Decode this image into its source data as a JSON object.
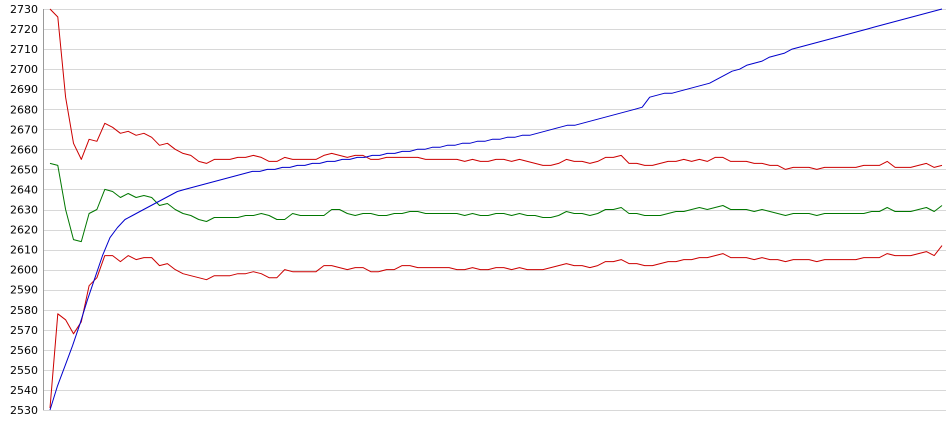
{
  "chart_data": {
    "type": "line",
    "title": "",
    "xlabel": "",
    "ylabel": "",
    "ylim": [
      2530,
      2730
    ],
    "yticks": [
      2530,
      2540,
      2550,
      2560,
      2570,
      2580,
      2590,
      2600,
      2610,
      2620,
      2630,
      2640,
      2650,
      2660,
      2670,
      2680,
      2690,
      2700,
      2710,
      2720,
      2730
    ],
    "grid": true,
    "legend": "none",
    "colors": [
      "#cc0000",
      "#007700",
      "#cc0000",
      "#0000cc"
    ],
    "series": [
      {
        "values": [
          2730,
          2726,
          2686,
          2663,
          2655,
          2665,
          2664,
          2673,
          2671,
          2668,
          2669,
          2667,
          2668,
          2666,
          2662,
          2663,
          2660,
          2658,
          2657,
          2654,
          2653,
          2655,
          2655,
          2655,
          2656,
          2656,
          2657,
          2656,
          2654,
          2654,
          2656,
          2655,
          2655,
          2655,
          2655,
          2657,
          2658,
          2657,
          2656,
          2657,
          2657,
          2655,
          2655,
          2656,
          2656,
          2656,
          2656,
          2656,
          2655,
          2655,
          2655,
          2655,
          2655,
          2654,
          2655,
          2654,
          2654,
          2655,
          2655,
          2654,
          2655,
          2654,
          2653,
          2652,
          2652,
          2653,
          2655,
          2654,
          2654,
          2653,
          2654,
          2656,
          2656,
          2657,
          2653,
          2653,
          2652,
          2652,
          2653,
          2654,
          2654,
          2655,
          2654,
          2655,
          2654,
          2656,
          2656,
          2654,
          2654,
          2654,
          2653,
          2653,
          2652,
          2652,
          2650,
          2651,
          2651,
          2651,
          2650,
          2651,
          2651,
          2651,
          2651,
          2651,
          2652,
          2652,
          2652,
          2654,
          2651,
          2651,
          2651,
          2652,
          2653,
          2651,
          2652
        ]
      },
      {
        "values": [
          2653,
          2652,
          2630,
          2615,
          2614,
          2628,
          2630,
          2640,
          2639,
          2636,
          2638,
          2636,
          2637,
          2636,
          2632,
          2633,
          2630,
          2628,
          2627,
          2625,
          2624,
          2626,
          2626,
          2626,
          2626,
          2627,
          2627,
          2628,
          2627,
          2625,
          2625,
          2628,
          2627,
          2627,
          2627,
          2627,
          2630,
          2630,
          2628,
          2627,
          2628,
          2628,
          2627,
          2627,
          2628,
          2628,
          2629,
          2629,
          2628,
          2628,
          2628,
          2628,
          2628,
          2627,
          2628,
          2627,
          2627,
          2628,
          2628,
          2627,
          2628,
          2627,
          2627,
          2626,
          2626,
          2627,
          2629,
          2628,
          2628,
          2627,
          2628,
          2630,
          2630,
          2631,
          2628,
          2628,
          2627,
          2627,
          2627,
          2628,
          2629,
          2629,
          2630,
          2631,
          2630,
          2631,
          2632,
          2630,
          2630,
          2630,
          2629,
          2630,
          2629,
          2628,
          2627,
          2628,
          2628,
          2628,
          2627,
          2628,
          2628,
          2628,
          2628,
          2628,
          2628,
          2629,
          2629,
          2631,
          2629,
          2629,
          2629,
          2630,
          2631,
          2629,
          2632
        ]
      },
      {
        "values": [
          2531,
          2578,
          2575,
          2568,
          2574,
          2592,
          2596,
          2607,
          2607,
          2604,
          2607,
          2605,
          2606,
          2606,
          2602,
          2603,
          2600,
          2598,
          2597,
          2596,
          2595,
          2597,
          2597,
          2597,
          2598,
          2598,
          2599,
          2598,
          2596,
          2596,
          2600,
          2599,
          2599,
          2599,
          2599,
          2602,
          2602,
          2601,
          2600,
          2601,
          2601,
          2599,
          2599,
          2600,
          2600,
          2602,
          2602,
          2601,
          2601,
          2601,
          2601,
          2601,
          2600,
          2600,
          2601,
          2600,
          2600,
          2601,
          2601,
          2600,
          2601,
          2600,
          2600,
          2600,
          2601,
          2602,
          2603,
          2602,
          2602,
          2601,
          2602,
          2604,
          2604,
          2605,
          2603,
          2603,
          2602,
          2602,
          2603,
          2604,
          2604,
          2605,
          2605,
          2606,
          2606,
          2607,
          2608,
          2606,
          2606,
          2606,
          2605,
          2606,
          2605,
          2605,
          2604,
          2605,
          2605,
          2605,
          2604,
          2605,
          2605,
          2605,
          2605,
          2605,
          2606,
          2606,
          2606,
          2608,
          2607,
          2607,
          2607,
          2608,
          2609,
          2607,
          2612
        ]
      },
      {
        "values": [
          2530,
          2542,
          2552,
          2562,
          2573,
          2585,
          2596,
          2607,
          2616,
          2621,
          2625,
          2627,
          2629,
          2631,
          2633,
          2635,
          2637,
          2639,
          2640,
          2641,
          2642,
          2643,
          2644,
          2645,
          2646,
          2647,
          2648,
          2649,
          2649,
          2650,
          2650,
          2651,
          2651,
          2652,
          2652,
          2653,
          2653,
          2654,
          2654,
          2655,
          2655,
          2656,
          2656,
          2657,
          2657,
          2658,
          2658,
          2659,
          2659,
          2660,
          2660,
          2661,
          2661,
          2662,
          2662,
          2663,
          2663,
          2664,
          2664,
          2665,
          2665,
          2666,
          2666,
          2667,
          2667,
          2668,
          2669,
          2670,
          2671,
          2672,
          2672,
          2673,
          2674,
          2675,
          2676,
          2677,
          2678,
          2679,
          2680,
          2681,
          2686,
          2687,
          2688,
          2688,
          2689,
          2690,
          2691,
          2692,
          2693,
          2695,
          2697,
          2699,
          2700,
          2702,
          2703,
          2704,
          2706,
          2707,
          2708,
          2710,
          2711,
          2712,
          2713,
          2714,
          2715,
          2716,
          2717,
          2718,
          2719,
          2720,
          2721,
          2722,
          2723,
          2724,
          2725,
          2726,
          2727,
          2728,
          2729,
          2730
        ]
      }
    ]
  }
}
